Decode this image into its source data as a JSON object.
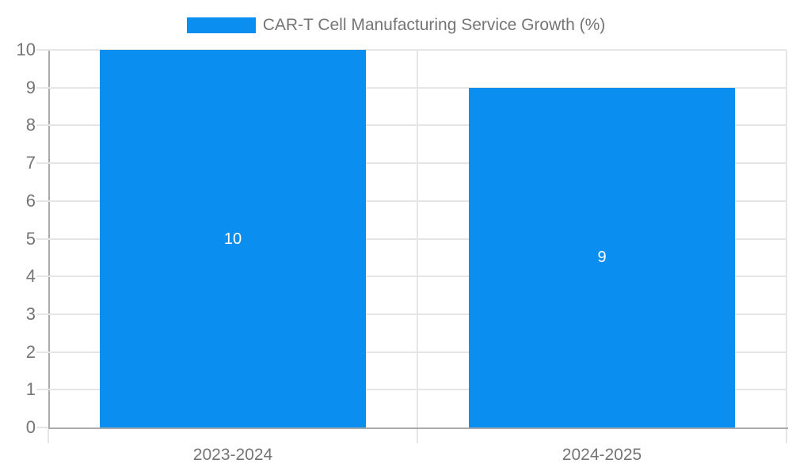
{
  "chart_data": {
    "type": "bar",
    "title": "CAR-T Cell Manufacturing Service Growth (%)",
    "series_name": "CAR-T Cell Manufacturing Service Growth (%)",
    "categories": [
      "2023-2024",
      "2024-2025"
    ],
    "values": [
      10,
      9
    ],
    "data_labels": [
      "10",
      "9"
    ],
    "xlabel": "",
    "ylabel": "",
    "ylim": [
      0,
      10
    ],
    "yticks": [
      0,
      1,
      2,
      3,
      4,
      5,
      6,
      7,
      8,
      9,
      10
    ],
    "grid": true,
    "legend_position": "top",
    "colors": {
      "bar": "#0a8ff0",
      "grid": "#e6e6e6",
      "axis": "#aaaaaa",
      "axis_text": "#757575",
      "data_label": "#ffffff",
      "background": "#ffffff"
    }
  }
}
